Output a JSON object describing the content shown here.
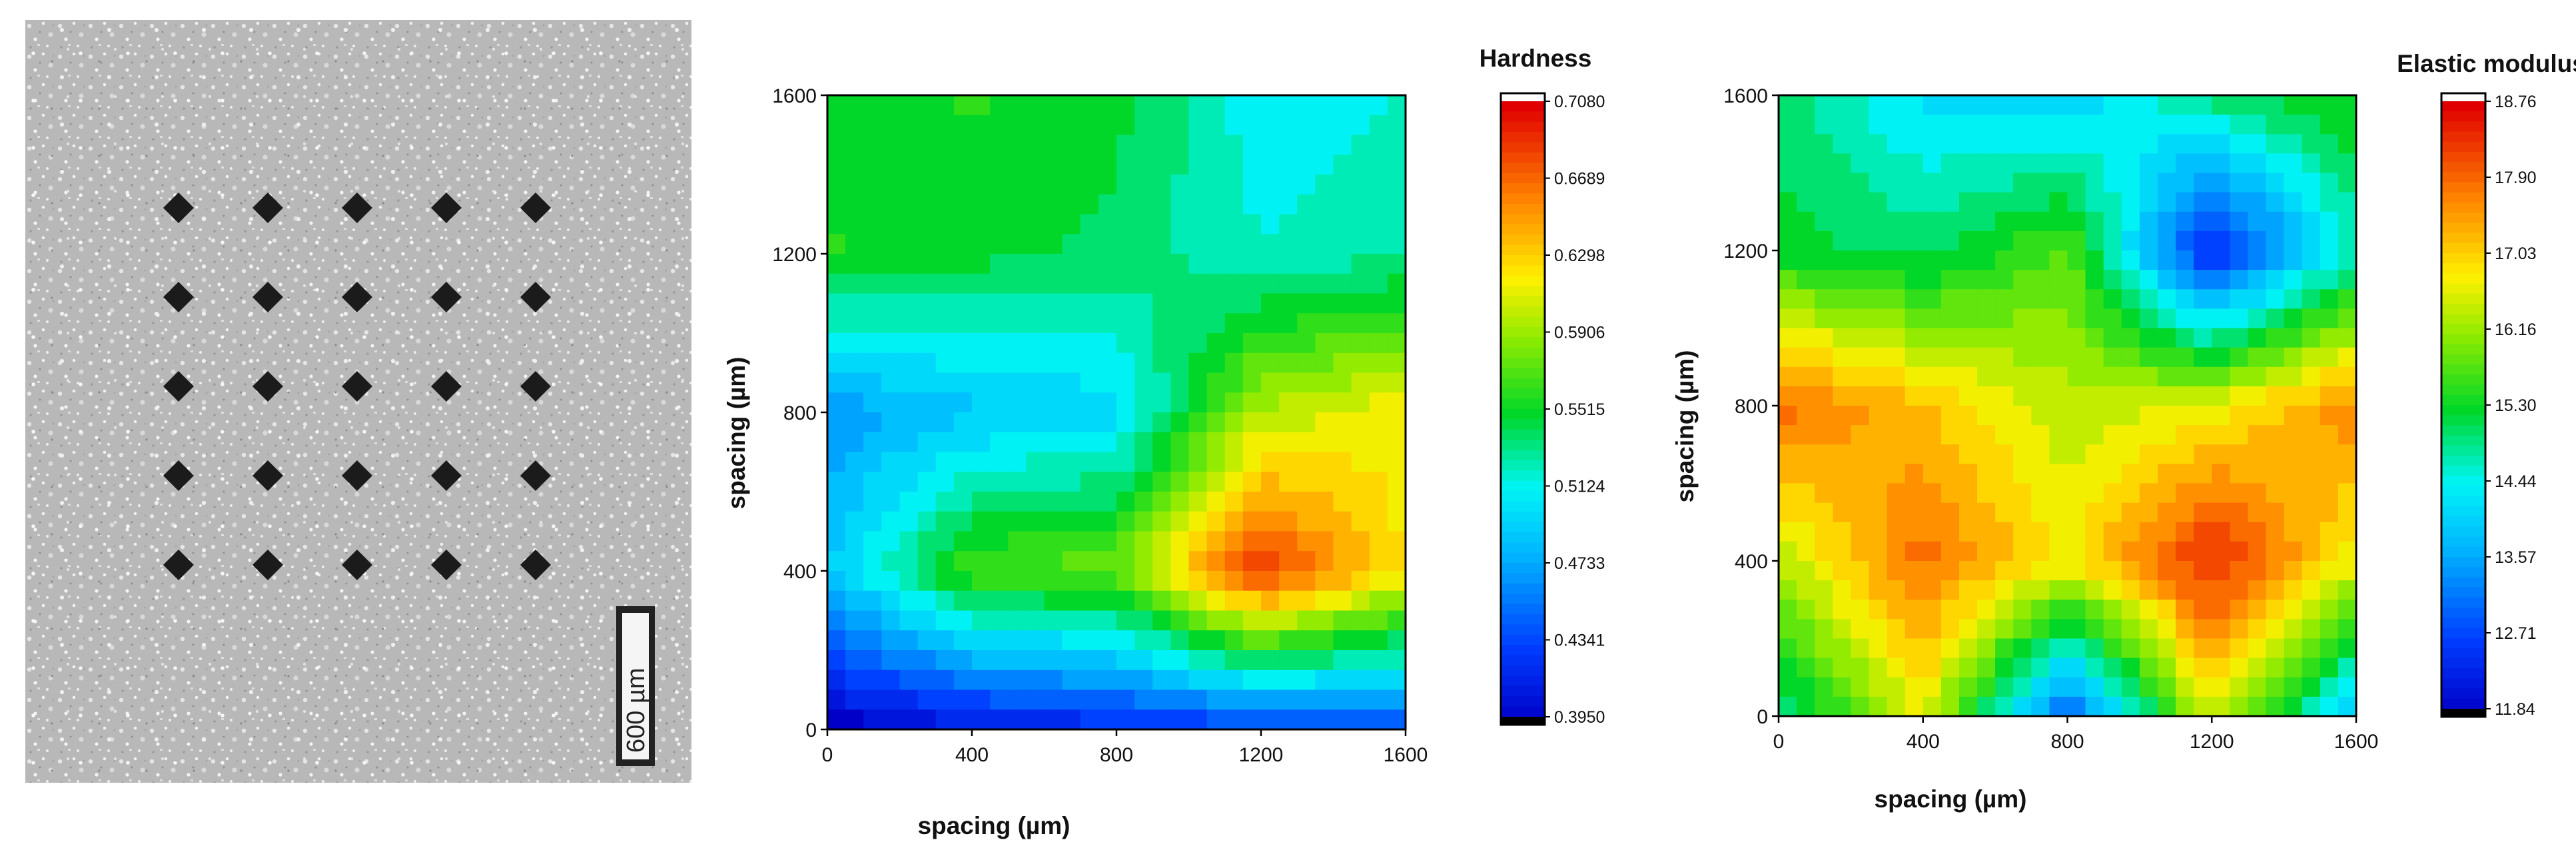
{
  "micrograph": {
    "scale_bar_label": "600 µm",
    "indents": {
      "rows": 5,
      "cols": 5,
      "spacing_um": 400
    }
  },
  "chart_data": [
    {
      "type": "heatmap",
      "name": "hardness",
      "title": "Hardness",
      "xlabel": "spacing  (µm)",
      "ylabel": "spacing  (µm)",
      "xlim": [
        0,
        1600
      ],
      "ylim": [
        0,
        1600
      ],
      "x": [
        0,
        400,
        800,
        1200,
        1600
      ],
      "y": [
        0,
        400,
        800,
        1200,
        1600
      ],
      "xticks": [
        "0",
        "400",
        "800",
        "1200",
        "1600"
      ],
      "yticks": [
        "0",
        "400",
        "800",
        "1200",
        "1600"
      ],
      "z": [
        [
          0.55,
          0.56,
          0.55,
          0.51,
          0.52
        ],
        [
          0.56,
          0.55,
          0.54,
          0.52,
          0.53
        ],
        [
          0.47,
          0.49,
          0.5,
          0.6,
          0.62
        ],
        [
          0.49,
          0.57,
          0.58,
          0.69,
          0.62
        ],
        [
          0.39,
          0.41,
          0.42,
          0.43,
          0.44
        ]
      ],
      "colorbar": {
        "min": 0.395,
        "max": 0.708,
        "ticks": [
          "0.7080",
          "0.6689",
          "0.6298",
          "0.5906",
          "0.5515",
          "0.5124",
          "0.4733",
          "0.4341",
          "0.3950"
        ]
      }
    },
    {
      "type": "heatmap",
      "name": "elastic-modulus",
      "title": "Elastic modulus",
      "xlabel": "spacing  (µm)",
      "ylabel": "spacing  (µm)",
      "xlim": [
        0,
        1600
      ],
      "ylim": [
        0,
        1600
      ],
      "x": [
        0,
        400,
        800,
        1200,
        1600
      ],
      "y": [
        0,
        400,
        800,
        1200,
        1600
      ],
      "xticks": [
        "0",
        "400",
        "800",
        "1200",
        "1600"
      ],
      "yticks": [
        "0",
        "400",
        "800",
        "1200",
        "1600"
      ],
      "z": [
        [
          15.0,
          14.2,
          14.0,
          15.0,
          15.5
        ],
        [
          15.3,
          15.0,
          15.8,
          12.3,
          14.7
        ],
        [
          17.9,
          17.2,
          16.4,
          16.7,
          17.7
        ],
        [
          16.4,
          17.9,
          16.8,
          18.5,
          16.7
        ],
        [
          14.8,
          16.7,
          12.8,
          16.6,
          13.8
        ]
      ],
      "colorbar": {
        "min": 11.84,
        "max": 18.76,
        "ticks": [
          "18.76",
          "17.90",
          "17.03",
          "16.16",
          "15.30",
          "14.44",
          "13.57",
          "12.71",
          "11.84"
        ]
      }
    }
  ]
}
